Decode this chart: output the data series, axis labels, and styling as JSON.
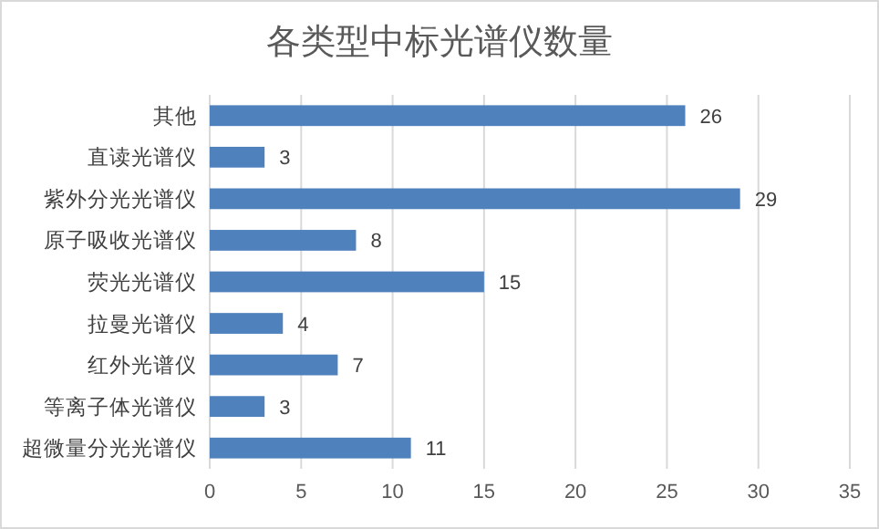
{
  "chart_data": {
    "type": "bar",
    "orientation": "horizontal",
    "title": "各类型中标光谱仪数量",
    "categories": [
      "其他",
      "直读光谱仪",
      "紫外分光光谱仪",
      "原子吸收光谱仪",
      "荧光光谱仪",
      "拉曼光谱仪",
      "红外光谱仪",
      "等离子体光谱仪",
      "超微量分光光谱仪"
    ],
    "values": [
      26,
      3,
      29,
      8,
      15,
      4,
      7,
      3,
      11
    ],
    "color": "#4f81bd",
    "xlim": [
      0,
      35
    ],
    "xticks": [
      0,
      5,
      10,
      15,
      20,
      25,
      30,
      35
    ],
    "grid": "x",
    "data_labels": true
  }
}
